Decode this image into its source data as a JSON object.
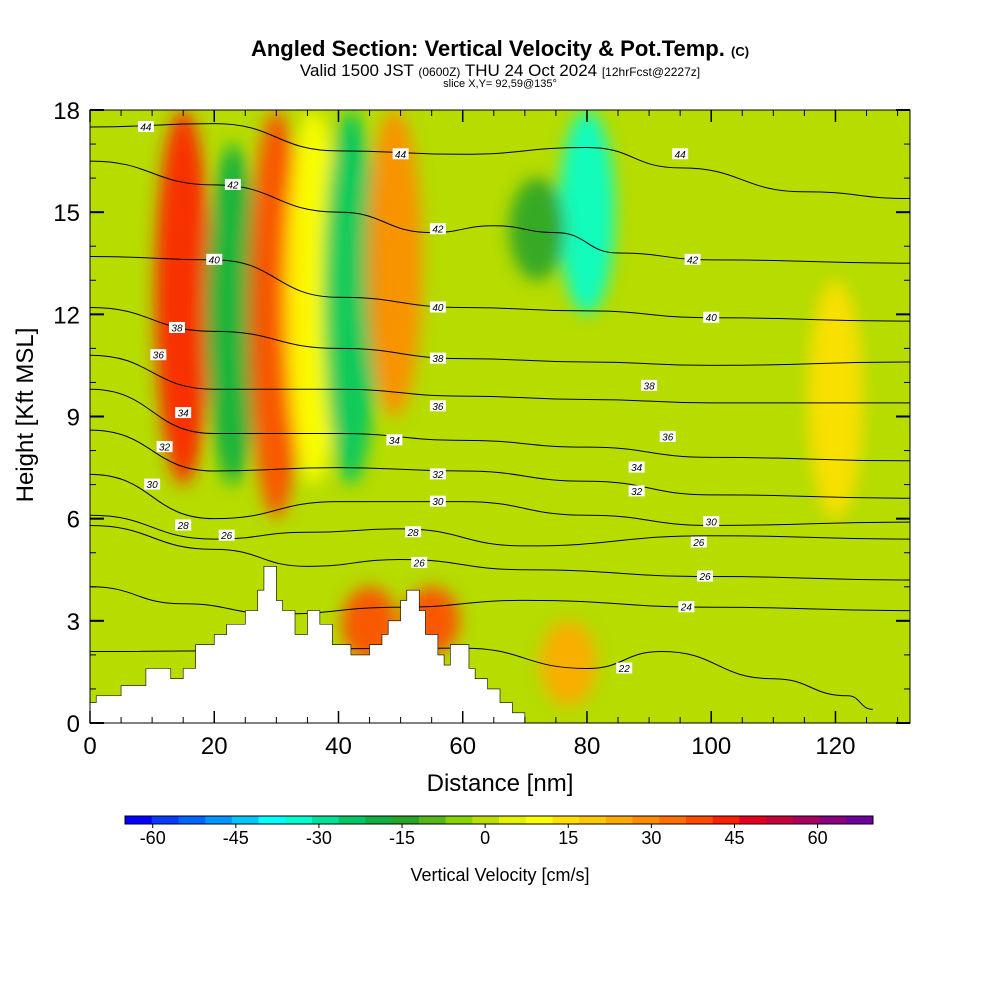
{
  "title": {
    "main": "Angled Section: Vertical Velocity & Pot.Temp.",
    "main_tag": "(C)",
    "valid_prefix": "Valid 1500 JST",
    "valid_zulu": "(0600Z)",
    "valid_date": "THU 24 Oct 2024",
    "forecast": "[12hrFcst@2227z]",
    "slice": "slice X,Y= 92,59@135°"
  },
  "chart_data": {
    "type": "heatmap",
    "xlabel": "Distance [nm]",
    "ylabel": "Height [Kft MSL]",
    "xlim": [
      0,
      132
    ],
    "ylim": [
      0,
      18
    ],
    "x_ticks": [
      0,
      20,
      40,
      60,
      80,
      100,
      120
    ],
    "y_ticks": [
      0,
      3,
      6,
      9,
      12,
      15,
      18
    ],
    "colorbar": {
      "label": "Vertical Velocity [cm/s]",
      "tick_labels": [
        "-60",
        "-45",
        "-30",
        "-15",
        "0",
        "15",
        "30",
        "45",
        "60"
      ],
      "tick_values": [
        -60,
        -45,
        -30,
        -15,
        0,
        15,
        30,
        45,
        60
      ],
      "min": -65,
      "max": 70,
      "colors": [
        "#0000ff",
        "#0a3cff",
        "#0064ff",
        "#0096ff",
        "#00c8ff",
        "#00ffff",
        "#00ffd0",
        "#00e096",
        "#00c864",
        "#10b040",
        "#28a428",
        "#54b818",
        "#86d400",
        "#bede00",
        "#e4f200",
        "#ffff00",
        "#ffe000",
        "#ffc800",
        "#ffaa00",
        "#ff8c00",
        "#ff6e00",
        "#ff4a00",
        "#ff2000",
        "#e4001e",
        "#c8003c",
        "#aa0064",
        "#8c0082",
        "#6e00a0"
      ]
    },
    "vertical_velocity_features": [
      {
        "x": 15,
        "y_range": [
          7,
          18
        ],
        "value": 45
      },
      {
        "x": 23,
        "y_range": [
          7,
          17
        ],
        "value": -20
      },
      {
        "x": 30,
        "y_range": [
          6,
          18
        ],
        "value": 40
      },
      {
        "x": 36,
        "y_range": [
          7,
          18
        ],
        "value": 10
      },
      {
        "x": 42,
        "y_range": [
          7,
          18
        ],
        "value": -22
      },
      {
        "x": 49,
        "y_range": [
          9,
          18
        ],
        "value": 30
      },
      {
        "x": 80,
        "y_range": [
          12,
          18
        ],
        "value": -35
      },
      {
        "x": 72,
        "y_range": [
          13,
          16
        ],
        "value": -15
      },
      {
        "x": 45,
        "y_range": [
          1.8,
          4
        ],
        "value": 40
      },
      {
        "x": 55,
        "y_range": [
          2,
          4
        ],
        "value": 40
      },
      {
        "x": 77,
        "y_range": [
          0.5,
          3
        ],
        "value": 22
      },
      {
        "x": 120,
        "y_range": [
          6,
          13
        ],
        "value": 15
      }
    ],
    "theta_contours": [
      {
        "label": "44",
        "points": [
          [
            0,
            17.5
          ],
          [
            20,
            17.6
          ],
          [
            40,
            16.8
          ],
          [
            60,
            16.7
          ],
          [
            80,
            16.9
          ],
          [
            95,
            16.3
          ],
          [
            115,
            15.6
          ],
          [
            132,
            15.4
          ]
        ]
      },
      {
        "label": "42",
        "points": [
          [
            0,
            16.5
          ],
          [
            20,
            15.8
          ],
          [
            40,
            15
          ],
          [
            55,
            14.4
          ],
          [
            65,
            14.6
          ],
          [
            75,
            14.4
          ],
          [
            85,
            13.8
          ],
          [
            100,
            13.6
          ],
          [
            132,
            13.5
          ]
        ]
      },
      {
        "label": "40",
        "points": [
          [
            0,
            13.7
          ],
          [
            20,
            13.6
          ],
          [
            40,
            12.5
          ],
          [
            60,
            12.2
          ],
          [
            80,
            12.1
          ],
          [
            100,
            11.9
          ],
          [
            132,
            11.8
          ]
        ]
      },
      {
        "label": "38",
        "points": [
          [
            0,
            12.2
          ],
          [
            20,
            11.5
          ],
          [
            40,
            11
          ],
          [
            60,
            10.7
          ],
          [
            80,
            10.6
          ],
          [
            100,
            10.5
          ],
          [
            132,
            10.6
          ]
        ]
      },
      {
        "label": "36",
        "points": [
          [
            0,
            10.8
          ],
          [
            20,
            9.8
          ],
          [
            40,
            9.8
          ],
          [
            60,
            9.6
          ],
          [
            80,
            9.5
          ],
          [
            100,
            9.4
          ],
          [
            132,
            9.4
          ]
        ]
      },
      {
        "label": "34",
        "points": [
          [
            0,
            9.8
          ],
          [
            20,
            8.5
          ],
          [
            40,
            8.5
          ],
          [
            60,
            8.3
          ],
          [
            80,
            8.1
          ],
          [
            100,
            7.8
          ],
          [
            132,
            7.7
          ]
        ]
      },
      {
        "label": "32",
        "points": [
          [
            0,
            8.6
          ],
          [
            20,
            7.4
          ],
          [
            40,
            7.5
          ],
          [
            60,
            7.4
          ],
          [
            80,
            7.1
          ],
          [
            100,
            6.7
          ],
          [
            132,
            6.6
          ]
        ]
      },
      {
        "label": "30",
        "points": [
          [
            0,
            7.3
          ],
          [
            20,
            6
          ],
          [
            40,
            6.5
          ],
          [
            60,
            6.5
          ],
          [
            80,
            6.1
          ],
          [
            100,
            5.8
          ],
          [
            132,
            5.9
          ]
        ]
      },
      {
        "label": "28",
        "points": [
          [
            0,
            6.1
          ],
          [
            20,
            5.4
          ],
          [
            35,
            5.6
          ],
          [
            50,
            5.7
          ],
          [
            70,
            5.2
          ],
          [
            100,
            5.5
          ],
          [
            132,
            5.4
          ]
        ]
      },
      {
        "label": "26",
        "points": [
          [
            0,
            5.8
          ],
          [
            20,
            5.1
          ],
          [
            35,
            4.6
          ],
          [
            50,
            4.8
          ],
          [
            70,
            4.5
          ],
          [
            100,
            4.3
          ],
          [
            132,
            4.2
          ]
        ]
      },
      {
        "label": "24",
        "points": [
          [
            0,
            4
          ],
          [
            15,
            3.5
          ],
          [
            30,
            3.2
          ],
          [
            50,
            3.4
          ],
          [
            70,
            3.6
          ],
          [
            100,
            3.4
          ],
          [
            132,
            3.3
          ]
        ]
      },
      {
        "label": "22",
        "points": [
          [
            0,
            2.1
          ],
          [
            60,
            2.2
          ],
          [
            80,
            1.6
          ],
          [
            92,
            2.1
          ],
          [
            110,
            1.3
          ],
          [
            122,
            0.8
          ],
          [
            126,
            0.4
          ]
        ]
      }
    ],
    "contour_labels": [
      {
        "text": "44",
        "x": 9,
        "y": 17.5
      },
      {
        "text": "44",
        "x": 50,
        "y": 16.7
      },
      {
        "text": "44",
        "x": 95,
        "y": 16.7
      },
      {
        "text": "42",
        "x": 23,
        "y": 15.8
      },
      {
        "text": "42",
        "x": 56,
        "y": 14.5
      },
      {
        "text": "42",
        "x": 97,
        "y": 13.6
      },
      {
        "text": "40",
        "x": 20,
        "y": 13.6
      },
      {
        "text": "40",
        "x": 56,
        "y": 12.2
      },
      {
        "text": "40",
        "x": 100,
        "y": 11.9
      },
      {
        "text": "38",
        "x": 14,
        "y": 11.6
      },
      {
        "text": "38",
        "x": 56,
        "y": 10.7
      },
      {
        "text": "38",
        "x": 90,
        "y": 9.9
      },
      {
        "text": "36",
        "x": 11,
        "y": 10.8
      },
      {
        "text": "36",
        "x": 56,
        "y": 9.3
      },
      {
        "text": "36",
        "x": 93,
        "y": 8.4
      },
      {
        "text": "34",
        "x": 15,
        "y": 9.1
      },
      {
        "text": "34",
        "x": 49,
        "y": 8.3
      },
      {
        "text": "34",
        "x": 88,
        "y": 7.5
      },
      {
        "text": "32",
        "x": 12,
        "y": 8.1
      },
      {
        "text": "32",
        "x": 56,
        "y": 7.3
      },
      {
        "text": "32",
        "x": 88,
        "y": 6.8
      },
      {
        "text": "30",
        "x": 10,
        "y": 7
      },
      {
        "text": "30",
        "x": 56,
        "y": 6.5
      },
      {
        "text": "30",
        "x": 100,
        "y": 5.9
      },
      {
        "text": "28",
        "x": 15,
        "y": 5.8
      },
      {
        "text": "28",
        "x": 52,
        "y": 5.6
      },
      {
        "text": "26",
        "x": 22,
        "y": 5.5
      },
      {
        "text": "26",
        "x": 53,
        "y": 4.7
      },
      {
        "text": "26",
        "x": 98,
        "y": 5.3
      },
      {
        "text": "26",
        "x": 99,
        "y": 4.3
      },
      {
        "text": "24",
        "x": 96,
        "y": 3.4
      },
      {
        "text": "22",
        "x": 86,
        "y": 1.6
      }
    ],
    "terrain": [
      [
        0,
        0.6
      ],
      [
        1,
        0.6
      ],
      [
        1,
        0.8
      ],
      [
        5,
        0.8
      ],
      [
        5,
        1.1
      ],
      [
        9,
        1.1
      ],
      [
        9,
        1.6
      ],
      [
        13,
        1.6
      ],
      [
        13,
        1.3
      ],
      [
        15,
        1.3
      ],
      [
        15,
        1.6
      ],
      [
        17,
        1.6
      ],
      [
        17,
        2.3
      ],
      [
        20,
        2.3
      ],
      [
        20,
        2.6
      ],
      [
        22,
        2.6
      ],
      [
        22,
        2.9
      ],
      [
        25,
        2.9
      ],
      [
        25,
        3.3
      ],
      [
        27,
        3.3
      ],
      [
        27,
        3.9
      ],
      [
        28,
        3.9
      ],
      [
        28,
        4.6
      ],
      [
        30,
        4.6
      ],
      [
        30,
        3.6
      ],
      [
        31,
        3.6
      ],
      [
        31,
        3.3
      ],
      [
        33,
        3.3
      ],
      [
        33,
        2.6
      ],
      [
        35,
        2.6
      ],
      [
        35,
        3.3
      ],
      [
        37,
        3.3
      ],
      [
        37,
        2.9
      ],
      [
        39,
        2.9
      ],
      [
        39,
        2.3
      ],
      [
        42,
        2.3
      ],
      [
        42,
        2
      ],
      [
        45,
        2
      ],
      [
        45,
        2.3
      ],
      [
        47,
        2.3
      ],
      [
        47,
        2.6
      ],
      [
        48,
        2.6
      ],
      [
        48,
        3
      ],
      [
        50,
        3
      ],
      [
        50,
        3.6
      ],
      [
        51,
        3.6
      ],
      [
        51,
        3.9
      ],
      [
        53,
        3.9
      ],
      [
        53,
        3.3
      ],
      [
        54,
        3.3
      ],
      [
        54,
        2.6
      ],
      [
        56,
        2.6
      ],
      [
        56,
        2
      ],
      [
        57,
        2
      ],
      [
        57,
        1.7
      ],
      [
        58,
        1.7
      ],
      [
        58,
        2.3
      ],
      [
        61,
        2.3
      ],
      [
        61,
        1.6
      ],
      [
        62,
        1.6
      ],
      [
        62,
        1.3
      ],
      [
        64,
        1.3
      ],
      [
        64,
        1
      ],
      [
        66,
        1
      ],
      [
        66,
        0.6
      ],
      [
        68,
        0.6
      ],
      [
        68,
        0.3
      ],
      [
        70,
        0.3
      ],
      [
        70,
        0
      ]
    ]
  }
}
